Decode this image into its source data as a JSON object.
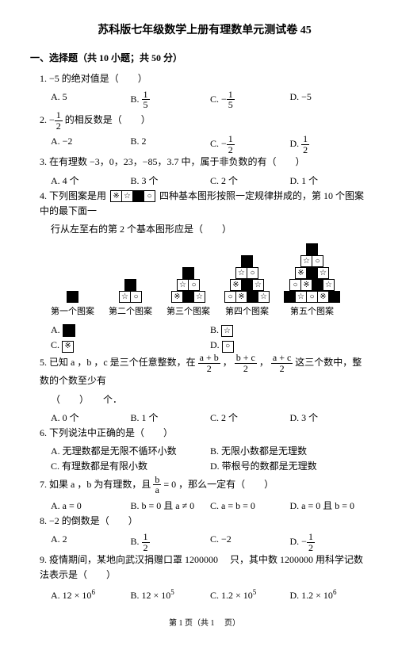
{
  "doc": {
    "title": "苏科版七年级数学上册有理数单元测试卷 45"
  },
  "section": {
    "h1": "一、选择题（共 10 小题；共 50 分）"
  },
  "q1": {
    "stem": "1. −5 的绝对值是（　　）",
    "A": "A. 5",
    "B": "B. ",
    "B_frac_n": "1",
    "B_frac_d": "5",
    "C": "C. −",
    "C_frac_n": "1",
    "C_frac_d": "5",
    "D": "D. −5"
  },
  "q2": {
    "stem_pre": "2. −",
    "stem_frac_n": "1",
    "stem_frac_d": "2",
    "stem_post": " 的相反数是（　　）",
    "A": "A. −2",
    "B": "B. 2",
    "C": "C. −",
    "C_frac_n": "1",
    "C_frac_d": "2",
    "D": "D. ",
    "D_frac_n": "1",
    "D_frac_d": "2"
  },
  "q3": {
    "stem": "3. 在有理数 −3，0，23，−85，3.7 中，属于非负数的有（　　）",
    "A": "A. 4 个",
    "B": "B. 3 个",
    "C": "C. 2 个",
    "D": "D. 1 个"
  },
  "q4": {
    "stem_pre": "4. 下列图案是用 ",
    "shapes": [
      "※",
      "☆",
      "■",
      "○"
    ],
    "stem_mid": " 四种基本图形按照一定规律拼成的，第 10 个图案中的最下面一",
    "stem_line2": "行从左至右的第 2 个基本图形应是（　　）",
    "row1": [
      "■"
    ],
    "row2_a": [
      "○",
      "■"
    ],
    "row2_b": [
      "☆",
      "○"
    ],
    "row3_a": [
      "■",
      "○",
      "※"
    ],
    "row3_b": [
      "☆",
      "○",
      "■"
    ],
    "row3_c": [
      "○",
      "※",
      "☆"
    ],
    "row4_a": [
      "■",
      "○",
      "※",
      "☆"
    ],
    "row4_b": [
      "☆",
      "○",
      "■",
      "○"
    ],
    "row4_c": [
      "○",
      "※",
      "☆",
      "■"
    ],
    "row4_d": [
      "※",
      "☆",
      "○",
      "※"
    ],
    "row5_a": [
      "■",
      "○",
      "※",
      "☆",
      "○"
    ],
    "row5_b": [
      "☆",
      "○",
      "■",
      "○",
      "※"
    ],
    "row5_c": [
      "○",
      "※",
      "☆",
      "■",
      "☆"
    ],
    "row5_d": [
      "※",
      "☆",
      "○",
      "※",
      "○"
    ],
    "row5_e": [
      "☆",
      "■",
      "※",
      "☆",
      "■"
    ],
    "cap1": "第一个图案",
    "cap2": "第二个图案",
    "cap3": "第三个图案",
    "cap4": "第四个图案",
    "cap5": "第五个图案",
    "A": "A. ",
    "B": "B. ",
    "C": "C. ",
    "D": "D. "
  },
  "q5": {
    "stem_pre": "5. 已知 a ，b ，c 是三个任意整数，在 ",
    "f1n": "a + b",
    "f1d": "2",
    "sep1": " ，",
    "f2n": "b + c",
    "f2d": "2",
    "sep2": " ，",
    "f3n": "a + c",
    "f3d": "2",
    "stem_post": " 这三个数中，整数的个数至少有",
    "line2": "（　　）　　个．",
    "A": "A. 0 个",
    "B": "B. 1 个",
    "C": "C. 2 个",
    "D": "D. 3 个"
  },
  "q6": {
    "stem": "6. 下列说法中正确的是（　　）",
    "A": "A. 无理数都是无限不循环小数",
    "B": "B. 无限小数都是无理数",
    "C": "C. 有理数都是有限小数",
    "D": "D. 带根号的数都是无理数"
  },
  "q7": {
    "stem_pre": "7. 如果 a ，b 为有理数，且 ",
    "fn": "b",
    "fd": "a",
    "stem_post": " = 0 ，那么一定有（　　）",
    "A": "A. a = 0",
    "B": "B. b = 0 且 a ≠ 0",
    "C": "C. a = b = 0",
    "D": "D. a = 0 且 b = 0"
  },
  "q8": {
    "stem": "8. −2 的倒数是（　　）",
    "A": "A. 2",
    "B": "B. ",
    "B_frac_n": "1",
    "B_frac_d": "2",
    "C": "C. −2",
    "D": "D. −",
    "D_frac_n": "1",
    "D_frac_d": "2"
  },
  "q9": {
    "stem": "9. 疫情期间，某地向武汉捐赠口罩 1200000 　只，其中数 1200000 用科学记数法表示是（　　）",
    "A": "A. 12 × 10",
    "A_sup": "6",
    "B": "B. 12 × 10",
    "B_sup": "5",
    "C": "C. 1.2 × 10",
    "C_sup": "5",
    "D": "D. 1.2 × 10",
    "D_sup": "6"
  },
  "footer": {
    "text": "第 1 页（共 1 　页）"
  }
}
